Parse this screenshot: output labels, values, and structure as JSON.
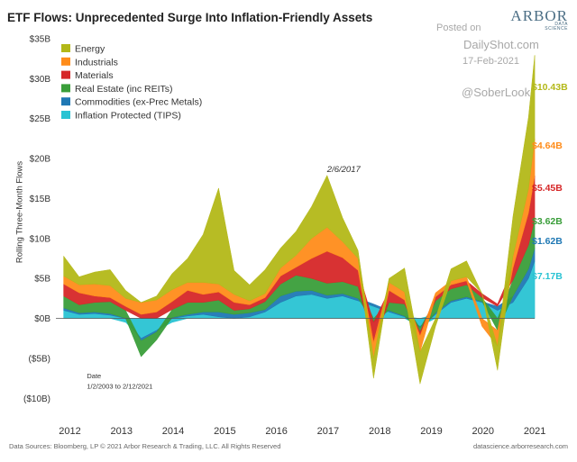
{
  "header": {
    "title": "ETF Flows: Unprecedented Surge Into Inflation-Friendly Assets",
    "brand": "ARBOR",
    "brand_sub": "DATA SCIENCE"
  },
  "watermark": {
    "line1": "Posted on",
    "line2": "DailyShot.com",
    "line3": "17-Feb-2021",
    "line4": "@SoberLook"
  },
  "footer": {
    "source": "Data Sources: Bloomberg, LP © 2021 Arbor Research & Trading, LLC. All Rights Reserved",
    "site": "datascience.arborresearch.com"
  },
  "chart_data": {
    "type": "area",
    "stacked": true,
    "ylabel": "Rolling Three-Month Flows",
    "xlabel": "",
    "ylim": [
      -12,
      35
    ],
    "xlim": [
      2011.85,
      2021.45
    ],
    "y_ticks": [
      {
        "value": 35,
        "label": "$35B"
      },
      {
        "value": 30,
        "label": "$30B"
      },
      {
        "value": 25,
        "label": "$25B"
      },
      {
        "value": 20,
        "label": "$20B"
      },
      {
        "value": 15,
        "label": "$15B"
      },
      {
        "value": 10,
        "label": "$10B"
      },
      {
        "value": 5,
        "label": "$5B"
      },
      {
        "value": 0,
        "label": "$0B"
      },
      {
        "value": -5,
        "label": "($5B)"
      },
      {
        "value": -10,
        "label": "($10B)"
      }
    ],
    "x_ticks": [
      "2012",
      "2013",
      "2014",
      "2015",
      "2016",
      "2017",
      "2018",
      "2019",
      "2020",
      "2021"
    ],
    "grid": false,
    "legend_position": "top-left",
    "annotations": [
      {
        "text": "2/6/2017",
        "x": 2017.1,
        "y": 18.3
      },
      {
        "text": "Date",
        "x": 2012.45,
        "y": -7.5
      },
      {
        "text": "1/2/2003 to 2/12/2021",
        "x": 2012.45,
        "y": -8.8
      }
    ],
    "x": [
      2012.0,
      2012.3,
      2012.6,
      2012.9,
      2013.2,
      2013.5,
      2013.8,
      2014.1,
      2014.4,
      2014.7,
      2015.0,
      2015.3,
      2015.6,
      2015.9,
      2016.2,
      2016.5,
      2016.8,
      2017.1,
      2017.4,
      2017.7,
      2018.0,
      2018.3,
      2018.6,
      2018.9,
      2019.2,
      2019.5,
      2019.8,
      2020.1,
      2020.4,
      2020.7,
      2021.0,
      2021.12
    ],
    "series": [
      {
        "name": "Inflation Protected (TIPS)",
        "color": "#29c3d3",
        "end_label": "$7.17B",
        "values": [
          1.0,
          0.5,
          0.6,
          0.4,
          -0.5,
          -2.5,
          -1.5,
          -0.5,
          0.3,
          0.5,
          0.2,
          0.0,
          0.2,
          0.8,
          2.0,
          2.8,
          3.0,
          2.5,
          2.8,
          2.2,
          1.5,
          0.8,
          0.2,
          -1.0,
          0.5,
          2.0,
          2.5,
          2.0,
          1.0,
          2.0,
          5.0,
          7.17
        ]
      },
      {
        "name": "Commodities (ex-Prec Metals)",
        "color": "#1f78b4",
        "end_label": "$1.62B",
        "values": [
          0.3,
          0.2,
          0.2,
          0.2,
          0.0,
          -0.3,
          -0.2,
          0.1,
          0.2,
          0.3,
          0.6,
          0.5,
          0.5,
          0.3,
          0.8,
          0.6,
          0.5,
          0.4,
          0.3,
          0.3,
          0.3,
          0.2,
          0.1,
          -0.2,
          0.2,
          0.2,
          0.2,
          0.1,
          0.5,
          0.8,
          1.2,
          1.62
        ]
      },
      {
        "name": "Real Estate (inc REITs)",
        "color": "#3a9e3a",
        "end_label": "$3.62B",
        "values": [
          1.5,
          1.0,
          1.2,
          1.5,
          1.0,
          -2.0,
          -1.0,
          1.0,
          1.5,
          1.2,
          1.5,
          0.5,
          0.5,
          1.0,
          1.5,
          2.0,
          1.5,
          1.5,
          1.5,
          1.5,
          -0.5,
          1.0,
          1.5,
          -0.5,
          1.5,
          1.5,
          1.5,
          0.5,
          -1.5,
          2.0,
          3.0,
          3.62
        ]
      },
      {
        "name": "Materials",
        "color": "#d62728",
        "end_label": "$5.45B",
        "values": [
          1.5,
          1.5,
          0.8,
          0.5,
          0.5,
          0.5,
          0.8,
          1.0,
          1.5,
          1.0,
          1.0,
          1.0,
          0.5,
          0.5,
          1.0,
          1.0,
          2.5,
          4.0,
          3.0,
          2.0,
          -2.5,
          1.5,
          0.5,
          -0.5,
          0.5,
          0.5,
          0.5,
          0.5,
          0.3,
          1.5,
          4.0,
          5.45
        ]
      },
      {
        "name": "Industrials",
        "color": "#ff8c1a",
        "end_label": "$4.64B",
        "values": [
          1.0,
          1.0,
          1.5,
          1.5,
          1.0,
          1.5,
          1.5,
          1.5,
          1.0,
          1.5,
          1.0,
          1.0,
          0.5,
          0.5,
          1.0,
          1.5,
          2.5,
          3.0,
          2.0,
          1.5,
          -2.0,
          1.0,
          1.0,
          -2.0,
          0.5,
          0.5,
          0.5,
          -1.0,
          -2.0,
          1.5,
          3.0,
          4.64
        ]
      },
      {
        "name": "Energy",
        "color": "#b3b818",
        "end_label": "$10.43B",
        "values": [
          2.5,
          1.0,
          1.5,
          2.0,
          1.0,
          0.0,
          0.5,
          2.0,
          3.0,
          6.0,
          12.0,
          3.0,
          2.0,
          3.0,
          2.5,
          3.0,
          4.0,
          6.5,
          3.0,
          1.0,
          -2.5,
          0.5,
          3.0,
          -4.0,
          -1.0,
          1.5,
          2.0,
          0.0,
          -3.0,
          5.0,
          9.0,
          10.43
        ]
      }
    ]
  }
}
